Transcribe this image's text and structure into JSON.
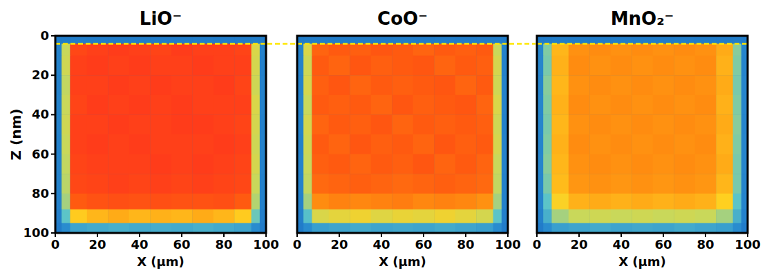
{
  "chart_data": [
    {
      "type": "heatmap",
      "title": "LiO⁻",
      "xlabel": "X (µm)",
      "ylabel": "Z (nm)",
      "xlim": [
        0,
        100
      ],
      "ylim": [
        0,
        100
      ],
      "xticks": [
        0,
        20,
        40,
        60,
        80,
        100
      ],
      "yticks": [
        0,
        20,
        40,
        60,
        80,
        100
      ],
      "tick_labels": true,
      "reference_z": 4,
      "color_range": [
        0,
        100
      ],
      "x_edges": [
        0,
        3,
        7,
        15,
        25,
        35,
        45,
        55,
        65,
        75,
        85,
        93,
        97,
        100
      ],
      "y_edges": [
        0,
        4,
        10,
        20,
        30,
        40,
        50,
        60,
        70,
        80,
        88,
        95,
        100
      ],
      "cells": [
        [
          8,
          8,
          9,
          8,
          8,
          9,
          8,
          8,
          9,
          8,
          8,
          9,
          8
        ],
        [
          12,
          55,
          93,
          95,
          96,
          95,
          94,
          96,
          95,
          95,
          94,
          58,
          12
        ],
        [
          12,
          56,
          95,
          96,
          95,
          96,
          95,
          95,
          96,
          95,
          95,
          57,
          11
        ],
        [
          11,
          54,
          95,
          95,
          96,
          95,
          96,
          95,
          95,
          96,
          94,
          56,
          12
        ],
        [
          12,
          55,
          94,
          96,
          95,
          96,
          95,
          96,
          95,
          95,
          95,
          58,
          12
        ],
        [
          12,
          56,
          95,
          95,
          96,
          95,
          95,
          96,
          96,
          95,
          94,
          57,
          11
        ],
        [
          11,
          55,
          95,
          96,
          95,
          96,
          95,
          95,
          95,
          96,
          95,
          56,
          12
        ],
        [
          12,
          54,
          94,
          95,
          95,
          95,
          96,
          95,
          96,
          95,
          94,
          57,
          12
        ],
        [
          12,
          53,
          93,
          94,
          95,
          94,
          95,
          94,
          95,
          94,
          93,
          55,
          11
        ],
        [
          11,
          50,
          88,
          90,
          91,
          90,
          91,
          90,
          90,
          91,
          88,
          52,
          11
        ],
        [
          10,
          40,
          66,
          70,
          72,
          70,
          71,
          70,
          72,
          70,
          66,
          42,
          10
        ],
        [
          8,
          18,
          28,
          30,
          32,
          30,
          31,
          30,
          32,
          30,
          28,
          18,
          8
        ]
      ]
    },
    {
      "type": "heatmap",
      "title": "CoO⁻",
      "xlabel": "X (µm)",
      "xlim": [
        0,
        100
      ],
      "ylim": [
        0,
        100
      ],
      "xticks": [
        0,
        20,
        40,
        60,
        80,
        100
      ],
      "tick_labels": "x",
      "reference_z": 4,
      "color_range": [
        0,
        100
      ],
      "x_edges": [
        0,
        3,
        7,
        15,
        25,
        35,
        45,
        55,
        65,
        75,
        85,
        93,
        97,
        100
      ],
      "y_edges": [
        0,
        4,
        10,
        20,
        30,
        40,
        50,
        60,
        70,
        80,
        88,
        95,
        100
      ],
      "cells": [
        [
          8,
          9,
          9,
          8,
          9,
          8,
          9,
          8,
          9,
          8,
          9,
          9,
          8
        ],
        [
          12,
          58,
          86,
          88,
          87,
          89,
          88,
          86,
          88,
          87,
          88,
          55,
          12
        ],
        [
          12,
          56,
          88,
          86,
          89,
          87,
          88,
          89,
          86,
          88,
          87,
          57,
          11
        ],
        [
          11,
          57,
          87,
          89,
          86,
          88,
          87,
          88,
          89,
          86,
          88,
          56,
          12
        ],
        [
          12,
          55,
          88,
          87,
          88,
          86,
          89,
          87,
          88,
          89,
          86,
          58,
          12
        ],
        [
          12,
          57,
          86,
          88,
          87,
          89,
          86,
          88,
          87,
          88,
          87,
          56,
          11
        ],
        [
          11,
          56,
          88,
          86,
          89,
          87,
          88,
          86,
          89,
          87,
          88,
          57,
          12
        ],
        [
          12,
          55,
          87,
          88,
          86,
          88,
          87,
          89,
          86,
          88,
          86,
          55,
          12
        ],
        [
          12,
          54,
          85,
          86,
          87,
          86,
          85,
          86,
          87,
          86,
          85,
          54,
          11
        ],
        [
          11,
          50,
          78,
          80,
          79,
          80,
          81,
          79,
          80,
          79,
          77,
          50,
          11
        ],
        [
          10,
          38,
          58,
          60,
          62,
          59,
          61,
          60,
          62,
          60,
          57,
          40,
          10
        ],
        [
          8,
          18,
          26,
          28,
          30,
          28,
          29,
          28,
          30,
          28,
          26,
          18,
          8
        ]
      ]
    },
    {
      "type": "heatmap",
      "title": "MnO₂⁻",
      "xlabel": "X (µm)",
      "xlim": [
        0,
        100
      ],
      "ylim": [
        0,
        100
      ],
      "xticks": [
        0,
        20,
        40,
        60,
        80,
        100
      ],
      "tick_labels": "x",
      "reference_z": 4,
      "color_range": [
        0,
        100
      ],
      "x_edges": [
        0,
        3,
        7,
        15,
        25,
        35,
        45,
        55,
        65,
        75,
        85,
        93,
        97,
        100
      ],
      "y_edges": [
        0,
        4,
        10,
        20,
        30,
        40,
        50,
        60,
        70,
        80,
        88,
        95,
        100
      ],
      "cells": [
        [
          8,
          8,
          9,
          8,
          8,
          9,
          8,
          8,
          9,
          8,
          8,
          9,
          8
        ],
        [
          14,
          45,
          70,
          77,
          78,
          77,
          78,
          77,
          78,
          77,
          72,
          46,
          14
        ],
        [
          14,
          44,
          71,
          78,
          77,
          78,
          77,
          78,
          77,
          78,
          71,
          45,
          13
        ],
        [
          13,
          46,
          70,
          77,
          78,
          77,
          78,
          77,
          78,
          77,
          72,
          44,
          14
        ],
        [
          14,
          45,
          71,
          78,
          77,
          78,
          77,
          78,
          77,
          78,
          71,
          45,
          14
        ],
        [
          14,
          44,
          70,
          77,
          78,
          77,
          78,
          77,
          78,
          77,
          72,
          46,
          13
        ],
        [
          13,
          45,
          71,
          78,
          77,
          78,
          77,
          78,
          77,
          78,
          71,
          45,
          14
        ],
        [
          14,
          46,
          70,
          77,
          78,
          77,
          78,
          77,
          78,
          77,
          72,
          44,
          14
        ],
        [
          14,
          44,
          69,
          76,
          77,
          76,
          77,
          76,
          77,
          76,
          70,
          44,
          13
        ],
        [
          13,
          40,
          64,
          71,
          72,
          71,
          72,
          71,
          72,
          71,
          65,
          40,
          13
        ],
        [
          11,
          32,
          50,
          55,
          56,
          55,
          56,
          55,
          56,
          55,
          50,
          32,
          11
        ],
        [
          8,
          18,
          26,
          28,
          30,
          28,
          29,
          28,
          30,
          28,
          26,
          18,
          8
        ]
      ]
    }
  ]
}
